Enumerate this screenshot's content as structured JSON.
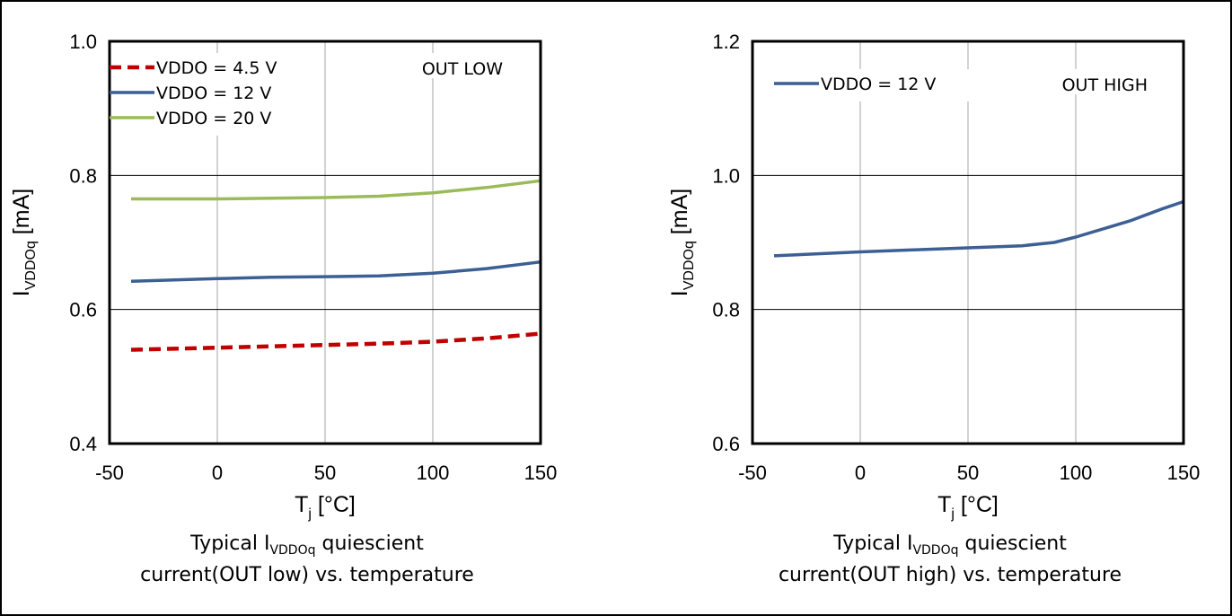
{
  "chart_data": [
    {
      "type": "line",
      "id": "out-low",
      "x_unit": "°C",
      "xlim": [
        -50,
        150
      ],
      "xticks": [
        "-50",
        "0",
        "50",
        "100",
        "150"
      ],
      "ylim": [
        0.4,
        1.0
      ],
      "yticks": [
        "0.4",
        "0.6",
        "0.8",
        "1.0"
      ],
      "grid": true,
      "legend_position": "top-left",
      "annotation": "OUT LOW",
      "xlabel": {
        "main": "T",
        "sub": "j",
        "rest": " [°C]"
      },
      "ylabel": {
        "main": "I",
        "sub": "VDDOq",
        "rest": " [mA]"
      },
      "caption": {
        "line1_prefix": "Typical I",
        "line1_sub": "VDDOq",
        "line1_suffix": " quiescient",
        "line2": "current(OUT low) vs. temperature"
      },
      "series": [
        {
          "name": "VDDO = 4.5 V",
          "color": "#c00000",
          "dashed": true,
          "x": [
            -40,
            0,
            25,
            50,
            75,
            100,
            125,
            150
          ],
          "y": [
            0.54,
            0.543,
            0.545,
            0.547,
            0.549,
            0.552,
            0.557,
            0.564
          ]
        },
        {
          "name": "VDDO = 12 V",
          "color": "#3c5f94",
          "dashed": false,
          "x": [
            -40,
            0,
            25,
            50,
            75,
            100,
            125,
            150
          ],
          "y": [
            0.642,
            0.646,
            0.648,
            0.649,
            0.65,
            0.654,
            0.661,
            0.671
          ]
        },
        {
          "name": "VDDO = 20 V",
          "color": "#9bbb59",
          "dashed": false,
          "x": [
            -40,
            0,
            25,
            50,
            75,
            100,
            125,
            150
          ],
          "y": [
            0.765,
            0.765,
            0.766,
            0.767,
            0.769,
            0.774,
            0.782,
            0.792
          ]
        }
      ]
    },
    {
      "type": "line",
      "id": "out-high",
      "x_unit": "°C",
      "xlim": [
        -50,
        150
      ],
      "xticks": [
        "-50",
        "0",
        "50",
        "100",
        "150"
      ],
      "ylim": [
        0.6,
        1.2
      ],
      "yticks": [
        "0.6",
        "0.8",
        "1.0",
        "1.2"
      ],
      "grid": true,
      "legend_position": "top-left",
      "annotation": "OUT HIGH",
      "xlabel": {
        "main": "T",
        "sub": "j",
        "rest": " [°C]"
      },
      "ylabel": {
        "main": "I",
        "sub": "VDDOq",
        "rest": " [mA]"
      },
      "caption": {
        "line1_prefix": "Typical I",
        "line1_sub": "VDDOq",
        "line1_suffix": " quiescient",
        "line2": "current(OUT high) vs. temperature"
      },
      "series": [
        {
          "name": "VDDO = 12 V",
          "color": "#3c5f94",
          "dashed": false,
          "x": [
            -40,
            0,
            25,
            50,
            75,
            90,
            100,
            125,
            140,
            150
          ],
          "y": [
            0.88,
            0.886,
            0.889,
            0.892,
            0.895,
            0.9,
            0.908,
            0.932,
            0.95,
            0.961
          ]
        }
      ]
    }
  ]
}
